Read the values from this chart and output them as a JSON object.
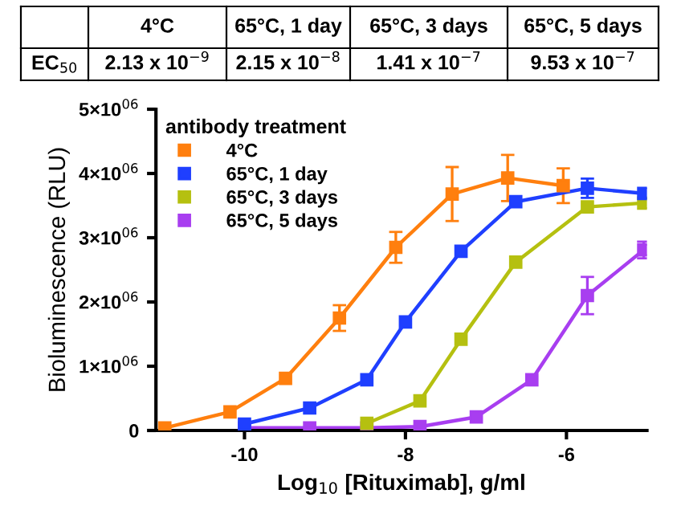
{
  "chart_data": {
    "type": "line",
    "xlabel": "Log$_{10}$ [Rituximab], g/ml",
    "ylabel": "Bioluminescence (RLU)",
    "legend_title": "antibody treatment",
    "annotations": [
      "EC$_{50}$",
      "2.13 x 10$^{−9}$",
      "2.15 x 10$^{−8}$",
      "1.41 x 10$^{−7}$",
      "9.53 x 10$^{−7}$"
    ],
    "series": [
      {
        "name": "4°C",
        "color": "#ff7f0e",
        "x": [
          -10.99,
          -10.18,
          -9.49,
          -8.82,
          -8.12,
          -7.42,
          -6.73,
          -6.04
        ],
        "values": [
          40000,
          290000,
          810000,
          1750000,
          2850000,
          3680000,
          3930000,
          3810000
        ],
        "errors": [
          null,
          null,
          null,
          200000,
          240000,
          420000,
          360000,
          270000
        ]
      },
      {
        "name": "65°C, 1 day",
        "color": "#1f3fff",
        "x": [
          -10.0,
          -9.19,
          -8.48,
          -8.0,
          -7.31,
          -6.63,
          -5.74,
          -5.04
        ],
        "values": [
          100000,
          350000,
          790000,
          1690000,
          2790000,
          3560000,
          3770000,
          3690000
        ],
        "errors": [
          null,
          null,
          null,
          null,
          null,
          null,
          150000,
          null
        ]
      },
      {
        "name": "65°C, 3 days",
        "color": "#b5c010",
        "x": [
          -8.48,
          -7.82,
          -7.31,
          -6.63,
          -5.74,
          -5.04
        ],
        "values": [
          110000,
          460000,
          1420000,
          2620000,
          3480000,
          3540000
        ]
      },
      {
        "name": "65°C, 5 days",
        "color": "#a83ef0",
        "x": [
          -10.0,
          -9.19,
          -8.48,
          -7.82,
          -7.12,
          -6.43,
          -5.74,
          -5.04
        ],
        "values": [
          40000,
          40000,
          40000,
          60000,
          210000,
          790000,
          2100000,
          2810000
        ],
        "errors": [
          null,
          null,
          null,
          null,
          null,
          null,
          290000,
          130000
        ]
      }
    ],
    "xlim": [
      -11.1,
      -5
    ],
    "xticks": [
      -10,
      -8,
      -6
    ],
    "ylim": [
      0,
      5000000
    ],
    "yticks": [
      0,
      {
        "value": 1000000,
        "label": "1×10$^{06}$"
      },
      {
        "value": 2000000,
        "label": "2×10$^{06}$"
      },
      {
        "value": 3000000,
        "label": "3×10$^{06}$"
      },
      {
        "value": 4000000,
        "label": "4×10$^{06}$"
      },
      {
        "value": 5000000,
        "label": "5×10$^{06}$"
      }
    ],
    "grid": false,
    "legend": "top left",
    "marker": "square",
    "line_style": "solid"
  }
}
